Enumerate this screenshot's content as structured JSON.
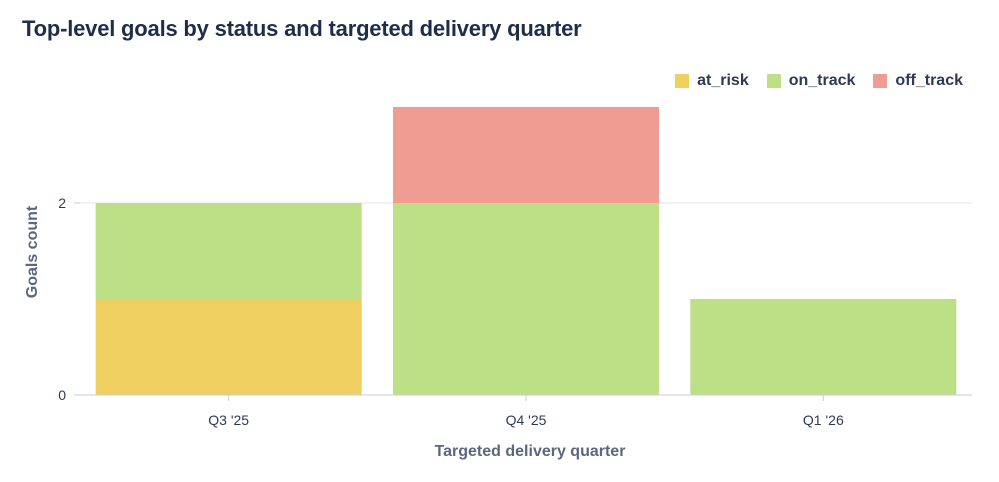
{
  "chart_data": {
    "type": "bar",
    "stacked": true,
    "title": "Top-level goals by status and targeted delivery quarter",
    "xlabel": "Targeted delivery quarter",
    "ylabel": "Goals count",
    "categories": [
      "Q3 '25",
      "Q4 '25",
      "Q1 '26"
    ],
    "series": [
      {
        "name": "at_risk",
        "color": "#efcf60",
        "values": [
          1,
          0,
          0
        ]
      },
      {
        "name": "on_track",
        "color": "#bddf85",
        "values": [
          1,
          2,
          1
        ]
      },
      {
        "name": "off_track",
        "color": "#ef9c92",
        "values": [
          0,
          1,
          0
        ]
      }
    ],
    "ylim": [
      0,
      3
    ],
    "yticks": [
      0,
      2
    ],
    "grid": true,
    "legend": "top-right"
  }
}
